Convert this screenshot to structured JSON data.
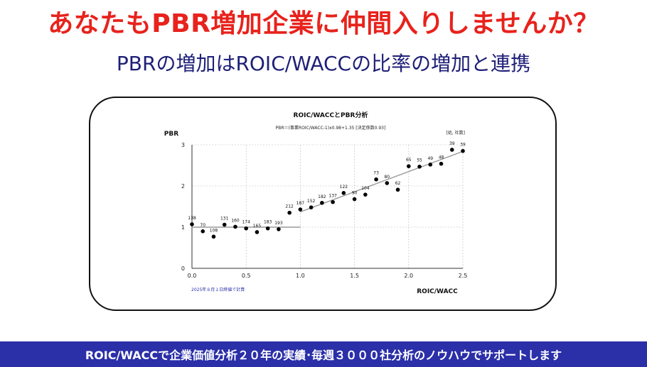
{
  "headline": "あなたもPBR増加企業に仲間入りしませんか？",
  "subhead": "PBRの増加はROIC/WACCの比率の増加と連携",
  "footer": "ROIC/WACCで企業価値分析２０年の実績･毎週３０００社分析のノウハウでサポートします",
  "colors": {
    "headline": "#e8221c",
    "subhead": "#1e1f78",
    "footer_bg": "#2b2fa8",
    "points": "#000000",
    "trend": "#9a9a9a",
    "note": "#2b2fa8"
  },
  "chart_data": {
    "type": "scatter",
    "title": "ROIC/WACCとPBR分析",
    "subtitle": "PBR＝(事業ROIC/WACC-1)x0.98+1.35 [決定係数0.93]",
    "unit_label": "[処, 社数]",
    "ylabel": "PBR",
    "xlabel": "ROIC/WACC",
    "note": "2025年８月１日終値で計算",
    "xlim": [
      0,
      2.5
    ],
    "ylim": [
      0,
      3
    ],
    "xticks": [
      "0.0",
      "0.5",
      "1.0",
      "1.5",
      "2.0",
      "2.5"
    ],
    "yticks": [
      "0",
      "1",
      "2",
      "3"
    ],
    "grid": true,
    "points": [
      {
        "x": 0.0,
        "y": 1.07,
        "label": "138"
      },
      {
        "x": 0.1,
        "y": 0.9,
        "label": "70"
      },
      {
        "x": 0.2,
        "y": 0.77,
        "label": "108"
      },
      {
        "x": 0.3,
        "y": 1.06,
        "label": "131"
      },
      {
        "x": 0.4,
        "y": 1.01,
        "label": "160"
      },
      {
        "x": 0.5,
        "y": 0.97,
        "label": "174"
      },
      {
        "x": 0.6,
        "y": 0.88,
        "label": "165"
      },
      {
        "x": 0.7,
        "y": 0.97,
        "label": "183"
      },
      {
        "x": 0.8,
        "y": 0.95,
        "label": "193"
      },
      {
        "x": 0.9,
        "y": 1.35,
        "label": "212"
      },
      {
        "x": 1.0,
        "y": 1.43,
        "label": "187"
      },
      {
        "x": 1.1,
        "y": 1.48,
        "label": "152"
      },
      {
        "x": 1.2,
        "y": 1.59,
        "label": "182"
      },
      {
        "x": 1.3,
        "y": 1.61,
        "label": "137"
      },
      {
        "x": 1.4,
        "y": 1.83,
        "label": "122"
      },
      {
        "x": 1.5,
        "y": 1.68,
        "label": "90"
      },
      {
        "x": 1.6,
        "y": 1.79,
        "label": "104"
      },
      {
        "x": 1.7,
        "y": 2.16,
        "label": "73"
      },
      {
        "x": 1.8,
        "y": 2.07,
        "label": "80"
      },
      {
        "x": 1.9,
        "y": 1.91,
        "label": "62"
      },
      {
        "x": 2.0,
        "y": 2.48,
        "label": "65"
      },
      {
        "x": 2.1,
        "y": 2.47,
        "label": "55"
      },
      {
        "x": 2.2,
        "y": 2.52,
        "label": "49"
      },
      {
        "x": 2.3,
        "y": 2.54,
        "label": "48"
      },
      {
        "x": 2.4,
        "y": 2.88,
        "label": "39"
      },
      {
        "x": 2.5,
        "y": 2.85,
        "label": "39"
      }
    ],
    "trend_segments": [
      {
        "x": [
          0.0,
          1.0
        ],
        "y": [
          1.0,
          1.0
        ]
      },
      {
        "x": [
          1.0,
          2.5
        ],
        "y": [
          1.37,
          2.84
        ]
      }
    ]
  }
}
